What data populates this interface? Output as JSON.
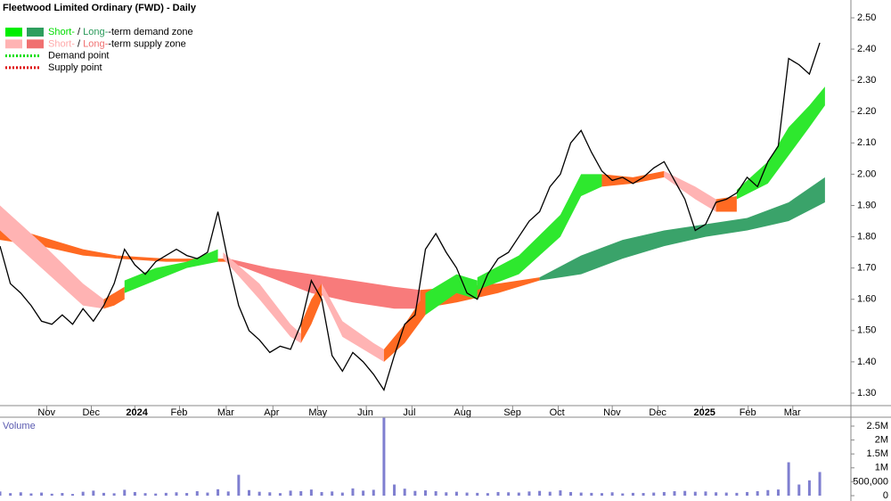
{
  "chart_data": [
    {
      "type": "line",
      "title": "Fleetwood Limited Ordinary (FWD) - Daily",
      "color": "#000000",
      "x": [
        0,
        1,
        2,
        3,
        4,
        5,
        6,
        7,
        8,
        9,
        10,
        11,
        12,
        13,
        14,
        15,
        16,
        17,
        18,
        19,
        20,
        21,
        22,
        23,
        24,
        25,
        26,
        27,
        28,
        29,
        30,
        31,
        32,
        33,
        34,
        35,
        36,
        37,
        38,
        39,
        40,
        41,
        42,
        43,
        44,
        45,
        46,
        47,
        48,
        49,
        50,
        51,
        52,
        53,
        54,
        55,
        56,
        57,
        58,
        59,
        60,
        61,
        62,
        63,
        64,
        65,
        66,
        67,
        68,
        69,
        70,
        71,
        72,
        73,
        74,
        75,
        76,
        77,
        78,
        79
      ],
      "values": [
        1.77,
        1.65,
        1.62,
        1.58,
        1.53,
        1.52,
        1.55,
        1.52,
        1.57,
        1.53,
        1.58,
        1.65,
        1.76,
        1.71,
        1.68,
        1.72,
        1.74,
        1.76,
        1.74,
        1.73,
        1.75,
        1.88,
        1.72,
        1.58,
        1.5,
        1.47,
        1.43,
        1.45,
        1.44,
        1.52,
        1.66,
        1.6,
        1.42,
        1.37,
        1.43,
        1.4,
        1.36,
        1.31,
        1.42,
        1.52,
        1.55,
        1.76,
        1.81,
        1.75,
        1.7,
        1.62,
        1.6,
        1.68,
        1.73,
        1.75,
        1.8,
        1.85,
        1.88,
        1.96,
        2.0,
        2.1,
        2.14,
        2.07,
        2.01,
        1.98,
        1.99,
        1.97,
        1.99,
        2.02,
        2.04,
        1.98,
        1.92,
        1.82,
        1.84,
        1.91,
        1.92,
        1.94,
        1.99,
        1.96,
        2.04,
        2.09,
        2.37,
        2.35,
        2.32,
        2.42
      ],
      "xlim": [
        0,
        82
      ],
      "xticks": [
        {
          "value": 4.5,
          "label": "Nov"
        },
        {
          "value": 8.8,
          "label": "Dec"
        },
        {
          "value": 13,
          "label": "2024"
        },
        {
          "value": 17.3,
          "label": "Feb"
        },
        {
          "value": 21.8,
          "label": "Mar"
        },
        {
          "value": 26.3,
          "label": "Apr"
        },
        {
          "value": 30.6,
          "label": "May"
        },
        {
          "value": 35.3,
          "label": "Jun"
        },
        {
          "value": 39.7,
          "label": "Jul"
        },
        {
          "value": 44.6,
          "label": "Aug"
        },
        {
          "value": 49.4,
          "label": "Sep"
        },
        {
          "value": 53.8,
          "label": "Oct"
        },
        {
          "value": 59,
          "label": "Nov"
        },
        {
          "value": 63.4,
          "label": "Dec"
        },
        {
          "value": 67.7,
          "label": "2025"
        },
        {
          "value": 72.1,
          "label": "Feb"
        },
        {
          "value": 76.4,
          "label": "Mar"
        }
      ],
      "ylim": [
        1.26,
        2.557
      ],
      "yticks": [
        {
          "value": 1.3,
          "label": "1.30"
        },
        {
          "value": 1.4,
          "label": "1.40"
        },
        {
          "value": 1.5,
          "label": "1.50"
        },
        {
          "value": 1.6,
          "label": "1.60"
        },
        {
          "value": 1.7,
          "label": "1.70"
        },
        {
          "value": 1.8,
          "label": "1.80"
        },
        {
          "value": 1.9,
          "label": "1.90"
        },
        {
          "value": 2.0,
          "label": "2.00"
        },
        {
          "value": 2.1,
          "label": "2.10"
        },
        {
          "value": 2.2,
          "label": "2.20"
        },
        {
          "value": 2.3,
          "label": "2.30"
        },
        {
          "value": 2.4,
          "label": "2.40"
        },
        {
          "value": 2.5,
          "label": "2.50"
        }
      ],
      "zones": [
        {
          "color": "#ff6a22",
          "x": [
            0,
            4,
            8,
            11.3
          ],
          "upper": [
            1.84,
            1.8,
            1.76,
            1.74
          ],
          "lower": [
            1.79,
            1.77,
            1.74,
            1.73
          ]
        },
        {
          "color": "#ff6a22",
          "x": [
            11.3,
            16,
            22
          ],
          "upper": [
            1.74,
            1.73,
            1.73
          ],
          "lower": [
            1.73,
            1.72,
            1.72
          ]
        },
        {
          "color": "#f87b7b",
          "x": [
            22,
            26,
            30,
            34,
            38,
            40.5
          ],
          "upper": [
            1.73,
            1.7,
            1.68,
            1.66,
            1.64,
            1.63
          ],
          "lower": [
            1.72,
            1.67,
            1.62,
            1.59,
            1.57,
            1.57
          ]
        },
        {
          "color": "#ff6a22",
          "x": [
            40.5,
            44,
            48,
            52
          ],
          "upper": [
            1.63,
            1.64,
            1.65,
            1.67
          ],
          "lower": [
            1.57,
            1.59,
            1.62,
            1.66
          ]
        },
        {
          "color": "#3aa36a",
          "x": [
            52,
            56,
            60,
            64,
            68,
            72,
            76,
            79.5
          ],
          "upper": [
            1.67,
            1.74,
            1.79,
            1.82,
            1.84,
            1.86,
            1.91,
            1.99
          ],
          "lower": [
            1.66,
            1.68,
            1.73,
            1.77,
            1.8,
            1.82,
            1.85,
            1.91
          ]
        },
        {
          "color": "#ffb3b3",
          "x": [
            0,
            4,
            8,
            10
          ],
          "upper": [
            1.9,
            1.78,
            1.65,
            1.6
          ],
          "lower": [
            1.82,
            1.7,
            1.58,
            1.57
          ]
        },
        {
          "color": "#ff6a22",
          "x": [
            10,
            11,
            12
          ],
          "upper": [
            1.6,
            1.62,
            1.64
          ],
          "lower": [
            1.57,
            1.58,
            1.6
          ]
        },
        {
          "color": "#2ee82e",
          "x": [
            12,
            15,
            18,
            21
          ],
          "upper": [
            1.66,
            1.7,
            1.72,
            1.76
          ],
          "lower": [
            1.62,
            1.66,
            1.7,
            1.72
          ]
        },
        {
          "color": "#ffb3b3",
          "x": [
            21.5,
            25,
            28,
            29
          ],
          "upper": [
            1.75,
            1.65,
            1.52,
            1.49
          ],
          "lower": [
            1.73,
            1.6,
            1.48,
            1.46
          ]
        },
        {
          "color": "#ff6a22",
          "x": [
            29,
            30,
            31
          ],
          "upper": [
            1.52,
            1.6,
            1.65
          ],
          "lower": [
            1.46,
            1.52,
            1.6
          ]
        },
        {
          "color": "#ffb3b3",
          "x": [
            31,
            33,
            36,
            37
          ],
          "upper": [
            1.65,
            1.53,
            1.46,
            1.44
          ],
          "lower": [
            1.62,
            1.48,
            1.42,
            1.4
          ]
        },
        {
          "color": "#ff6a22",
          "x": [
            37,
            39,
            41
          ],
          "upper": [
            1.44,
            1.52,
            1.62
          ],
          "lower": [
            1.4,
            1.46,
            1.55
          ]
        },
        {
          "color": "#2ee82e",
          "x": [
            41,
            44,
            46
          ],
          "upper": [
            1.62,
            1.68,
            1.66
          ],
          "lower": [
            1.55,
            1.62,
            1.6
          ]
        },
        {
          "color": "#2ee82e",
          "x": [
            46,
            50,
            54,
            56,
            58
          ],
          "upper": [
            1.67,
            1.74,
            1.87,
            2.0,
            2.0
          ],
          "lower": [
            1.63,
            1.68,
            1.8,
            1.93,
            1.96
          ]
        },
        {
          "color": "#ff6a22",
          "x": [
            58,
            61,
            64
          ],
          "upper": [
            2.0,
            1.99,
            2.01
          ],
          "lower": [
            1.96,
            1.97,
            1.99
          ]
        },
        {
          "color": "#ffb3b3",
          "x": [
            64,
            67,
            69
          ],
          "upper": [
            2.01,
            1.96,
            1.92
          ],
          "lower": [
            1.99,
            1.92,
            1.88
          ]
        },
        {
          "color": "#ff6a22",
          "x": [
            69,
            71
          ],
          "upper": [
            1.92,
            1.93
          ],
          "lower": [
            1.88,
            1.88
          ]
        },
        {
          "color": "#2ee82e",
          "x": [
            71,
            74,
            76,
            78,
            79.5
          ],
          "upper": [
            1.95,
            2.04,
            2.15,
            2.22,
            2.28
          ],
          "lower": [
            1.92,
            1.97,
            2.06,
            2.15,
            2.22
          ]
        }
      ],
      "legend": [
        {
          "parts": [
            "Short-",
            " / ",
            "Long-",
            "-term demand zone"
          ],
          "colors": [
            "#00dd00",
            "#000000",
            "#2a9a5a",
            "#000000"
          ],
          "swatches": [
            "#00ee00",
            "#2e9e5e"
          ],
          "swatch_style": "solid"
        },
        {
          "parts": [
            "Short-",
            " / ",
            "Long-",
            "-term supply zone"
          ],
          "colors": [
            "#ffaaaa",
            "#000000",
            "#f07070",
            "#000000"
          ],
          "swatches": [
            "#ffb3b3",
            "#f07070"
          ],
          "swatch_style": "solid"
        },
        {
          "parts": [
            "Demand point"
          ],
          "colors": [
            "#000000"
          ],
          "swatches": [
            "#00dd00"
          ],
          "swatch_style": "dotted"
        },
        {
          "parts": [
            "Supply point"
          ],
          "colors": [
            "#000000"
          ],
          "swatches": [
            "#dd0000"
          ],
          "swatch_style": "dotted"
        }
      ]
    },
    {
      "type": "bar",
      "title": "Volume",
      "color": "#7f7fd0",
      "x": [
        0,
        1,
        2,
        3,
        4,
        5,
        6,
        7,
        8,
        9,
        10,
        11,
        12,
        13,
        14,
        15,
        16,
        17,
        18,
        19,
        20,
        21,
        22,
        23,
        24,
        25,
        26,
        27,
        28,
        29,
        30,
        31,
        32,
        33,
        34,
        35,
        36,
        37,
        38,
        39,
        40,
        41,
        42,
        43,
        44,
        45,
        46,
        47,
        48,
        49,
        50,
        51,
        52,
        53,
        54,
        55,
        56,
        57,
        58,
        59,
        60,
        61,
        62,
        63,
        64,
        65,
        66,
        67,
        68,
        69,
        70,
        71,
        72,
        73,
        74,
        75,
        76,
        77,
        78,
        79
      ],
      "values": [
        150000,
        90000,
        120000,
        80000,
        110000,
        70000,
        95000,
        60000,
        140000,
        180000,
        100000,
        85000,
        210000,
        130000,
        90000,
        75000,
        100000,
        120000,
        95000,
        160000,
        110000,
        230000,
        150000,
        750000,
        200000,
        140000,
        120000,
        90000,
        180000,
        160000,
        220000,
        130000,
        150000,
        110000,
        260000,
        180000,
        210000,
        2800000,
        400000,
        250000,
        170000,
        190000,
        160000,
        120000,
        140000,
        110000,
        100000,
        90000,
        130000,
        120000,
        110000,
        150000,
        170000,
        140000,
        190000,
        130000,
        110000,
        100000,
        90000,
        120000,
        80000,
        100000,
        95000,
        110000,
        130000,
        160000,
        170000,
        140000,
        150000,
        120000,
        110000,
        100000,
        130000,
        160000,
        200000,
        220000,
        1200000,
        400000,
        550000,
        850000
      ],
      "xlim": [
        0,
        82
      ],
      "ylim": [
        0,
        2820000
      ],
      "yticks": [
        0,
        {
          "value": 500000,
          "label": "500,000"
        },
        {
          "value": 1000000,
          "label": "1M"
        },
        {
          "value": 1500000,
          "label": "1.5M"
        },
        {
          "value": 2000000,
          "label": "2M"
        },
        {
          "value": 2500000,
          "label": "2.5M"
        }
      ]
    }
  ]
}
